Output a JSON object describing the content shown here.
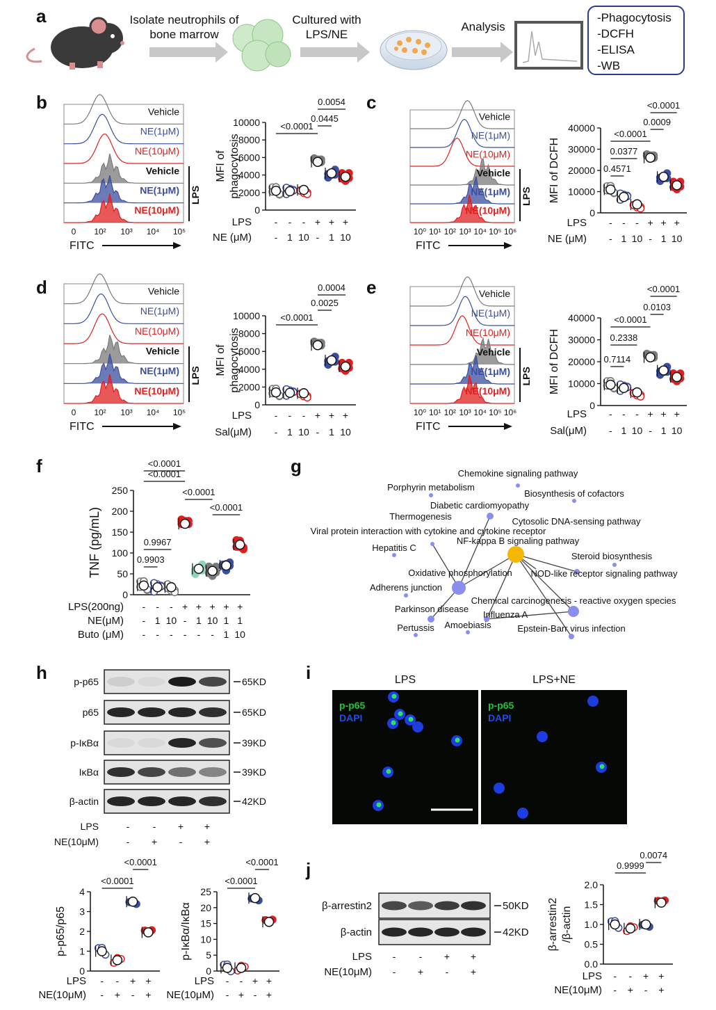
{
  "panels": {
    "a": "a",
    "b": "b",
    "c": "c",
    "d": "d",
    "e": "e",
    "f": "f",
    "g": "g",
    "h": "h",
    "i": "i",
    "j": "j"
  },
  "workflow": {
    "step1": "Isolate neutrophils of bone marrow",
    "step2": "Cultured with LPS/NE",
    "step3": "Analysis",
    "outputs": [
      "-Phagocytosis",
      "-DCFH",
      "-ELISA",
      "-WB"
    ]
  },
  "histograms": {
    "labels": [
      "Vehicle",
      "NE(1μM)",
      "NE(10μM)",
      "Vehicle",
      "NE(1μM)",
      "NE(10μM)"
    ],
    "lps": "LPS",
    "xlabel": "FITC",
    "ticks5": [
      "0",
      "10²",
      "10³",
      "10⁴",
      "10⁵"
    ],
    "ticks6": [
      "10⁰",
      "10¹",
      "10²",
      "10³",
      "10⁴",
      "10⁵",
      "10⁶"
    ]
  },
  "conditions": {
    "lps_row": [
      "-",
      "-",
      "-",
      "+",
      "+",
      "+"
    ],
    "dose_row": [
      "-",
      "1",
      "10",
      "-",
      "1",
      "10"
    ],
    "lps_label": "LPS",
    "ne_label": "NE (μM)",
    "sal_label": "Sal(μM)"
  },
  "chart_data": [
    {
      "panel": "b",
      "type": "scatter",
      "ylabel": "MFI of phagocytosis",
      "ylim": [
        0,
        10000
      ],
      "yticks": [
        "0",
        "2000",
        "4000",
        "6000",
        "8000",
        "10000"
      ],
      "groups": [
        "Vehicle",
        "NE 1",
        "NE 10",
        "LPS",
        "LPS+NE 1",
        "LPS+NE 10"
      ],
      "means": [
        2200,
        2150,
        2300,
        5500,
        4200,
        3800
      ],
      "comparisons": [
        {
          "label": "<0.0001"
        },
        {
          "label": "0.0445"
        },
        {
          "label": "0.0054"
        }
      ]
    },
    {
      "panel": "c",
      "type": "scatter",
      "ylabel": "MFI of DCFH",
      "ylim": [
        0,
        40000
      ],
      "yticks": [
        "0",
        "10000",
        "20000",
        "30000",
        "40000"
      ],
      "means": [
        11000,
        7500,
        4000,
        26000,
        17000,
        13000
      ],
      "comparisons": [
        {
          "label": "0.4571"
        },
        {
          "label": "0.0377"
        },
        {
          "label": "<0.0001"
        },
        {
          "label": "0.0009"
        },
        {
          "label": "<0.0001"
        }
      ]
    },
    {
      "panel": "d",
      "type": "scatter",
      "ylabel": "MFI of phagocytosis",
      "ylim": [
        0,
        10000
      ],
      "yticks": [
        "0",
        "2000",
        "4000",
        "6000",
        "8000",
        "10000"
      ],
      "means": [
        1400,
        1350,
        1300,
        6700,
        5000,
        4300
      ],
      "comparisons": [
        {
          "label": "<0.0001"
        },
        {
          "label": "0.0025"
        },
        {
          "label": "0.0004"
        }
      ]
    },
    {
      "panel": "e",
      "type": "scatter",
      "ylabel": "MFI of DCFH",
      "ylim": [
        0,
        40000
      ],
      "yticks": [
        "0",
        "10000",
        "20000",
        "30000",
        "40000"
      ],
      "means": [
        9500,
        8000,
        6000,
        22000,
        16000,
        13000
      ],
      "comparisons": [
        {
          "label": "0.7114"
        },
        {
          "label": "0.2338"
        },
        {
          "label": "<0.0001"
        },
        {
          "label": "0.0103"
        },
        {
          "label": "<0.0001"
        }
      ]
    },
    {
      "panel": "f",
      "type": "scatter",
      "ylabel": "TNF (pg/mL)",
      "ylim": [
        0,
        250
      ],
      "yticks": [
        "0",
        "50",
        "100",
        "150",
        "200",
        "250"
      ],
      "means": [
        22,
        18,
        18,
        170,
        62,
        57,
        70,
        120
      ],
      "comparisons": [
        {
          "label": "0.9903"
        },
        {
          "label": "0.9967"
        },
        {
          "label": "<0.0001"
        },
        {
          "label": "<0.0001"
        },
        {
          "label": "<0.0001"
        },
        {
          "label": "<0.0001"
        }
      ]
    },
    {
      "panel": "h1",
      "type": "scatter",
      "ylabel": "p-p65/p65",
      "ylim": [
        0,
        4
      ],
      "yticks": [
        "0",
        "1",
        "2",
        "3",
        "4"
      ],
      "means": [
        1.0,
        0.55,
        3.5,
        1.95
      ],
      "comparisons": [
        {
          "label": "<0.0001"
        },
        {
          "label": "<0.0001"
        }
      ]
    },
    {
      "panel": "h2",
      "type": "scatter",
      "ylabel": "p-IκBα/IκBα",
      "ylim": [
        0,
        25
      ],
      "yticks": [
        "0",
        "5",
        "10",
        "15",
        "20",
        "25"
      ],
      "means": [
        1.0,
        1.0,
        23,
        15.5
      ],
      "comparisons": [
        {
          "label": "<0.0001"
        },
        {
          "label": "<0.0001"
        }
      ]
    },
    {
      "panel": "j",
      "type": "scatter",
      "ylabel": "β-arrestin2 /β-actin",
      "ylim": [
        0,
        2
      ],
      "yticks": [
        "0.0",
        "0.5",
        "1.0",
        "1.5",
        "2.0"
      ],
      "means": [
        1.0,
        0.9,
        1.0,
        1.55
      ],
      "comparisons": [
        {
          "label": "0.9999"
        },
        {
          "label": "0.0074"
        }
      ]
    }
  ],
  "panel_f": {
    "rows": [
      {
        "label": "LPS(200ng)",
        "vals": [
          "-",
          "-",
          "-",
          "+",
          "+",
          "+",
          "+",
          "+"
        ]
      },
      {
        "label": "NE(μM)",
        "vals": [
          "-",
          "1",
          "10",
          "-",
          "1",
          "10",
          "1",
          "1"
        ]
      },
      {
        "label": "Buto (μM)",
        "vals": [
          "-",
          "-",
          "-",
          "-",
          "-",
          "-",
          "1",
          "10"
        ]
      }
    ]
  },
  "network": {
    "terms": [
      "Chemokine signaling pathway",
      "Porphyrin metabolism",
      "Biosynthesis of cofactors",
      "Diabetic cardiomyopathy",
      "Thermogenesis",
      "Cytosolic DNA-sensing pathway",
      "Viral protein interaction with cytokine and cytokine receptor",
      "NF-kappa B signaling pathway",
      "Hepatitis C",
      "Steroid biosynthesis",
      "Oxidative phosphorylation",
      "NOD-like receptor signaling pathway",
      "Adherens junction",
      "Chemical carcinogenesis - reactive oxygen species",
      "Parkinson disease",
      "Influenza A",
      "Pertussis",
      "Amoebiasis",
      "Epstein-Barr virus infection"
    ]
  },
  "western_h": {
    "bands": [
      {
        "name": "p-p65",
        "kd": "65KD"
      },
      {
        "name": "p65",
        "kd": "65KD"
      },
      {
        "name": "p-IκBα",
        "kd": "39KD"
      },
      {
        "name": "IκBα",
        "kd": "39KD"
      },
      {
        "name": "β-actin",
        "kd": "42KD"
      }
    ],
    "lps_row": [
      "-",
      "-",
      "+",
      "+"
    ],
    "ne_row": [
      "-",
      "+",
      "-",
      "+"
    ],
    "lps_label": "LPS",
    "ne_label": "NE(10μM)"
  },
  "micro": {
    "titles": [
      "LPS",
      "LPS+NE"
    ],
    "stain1": "p-p65",
    "stain2": "DAPI"
  },
  "western_j": {
    "bands": [
      {
        "name": "β-arrestin2",
        "kd": "50KD"
      },
      {
        "name": "β-actin",
        "kd": "42KD"
      }
    ],
    "lps_row": [
      "-",
      "-",
      "+",
      "+"
    ],
    "ne_row": [
      "-",
      "+",
      "-",
      "+"
    ],
    "lps_label": "LPS",
    "ne_label": "NE(10μM)"
  },
  "colors": {
    "gray": "#7a7a7a",
    "blue": "#3b4fa0",
    "red": "#e02020",
    "teal": "#8fd3c0",
    "node": "#8a8fef",
    "hub": "#f5b700"
  }
}
